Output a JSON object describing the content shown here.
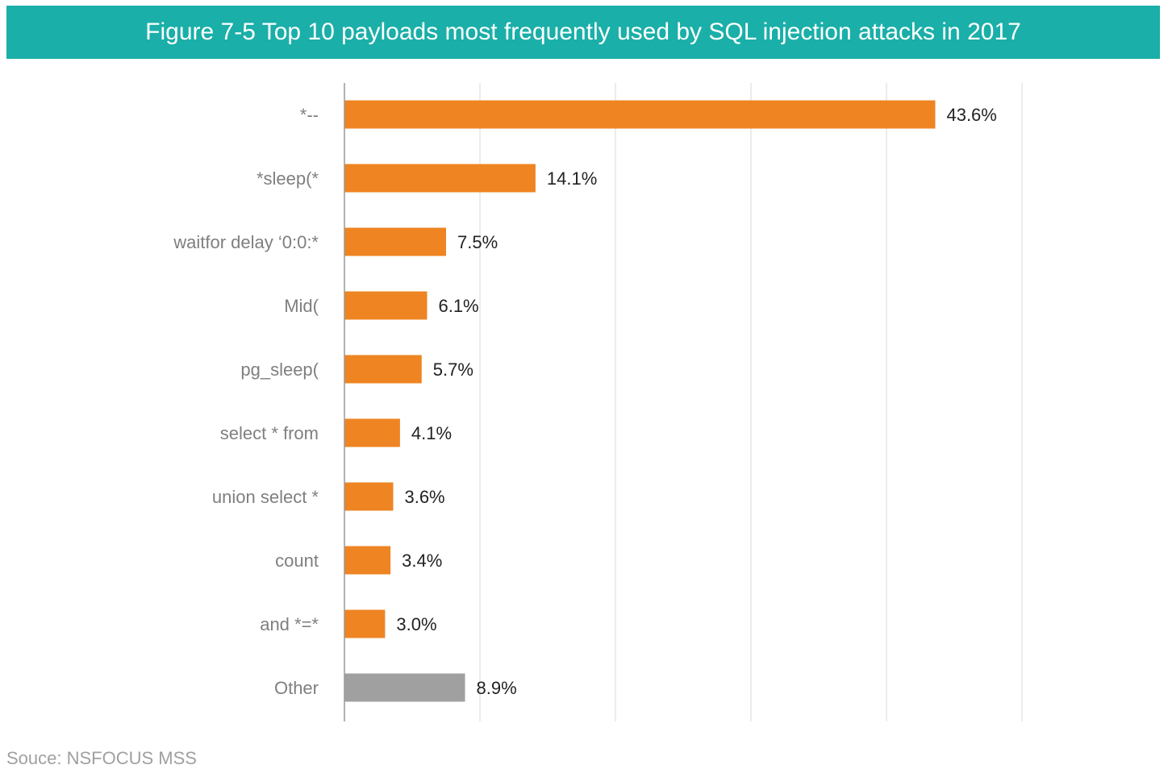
{
  "title": "Figure 7-5 Top 10 payloads most frequently used by SQL injection attacks in 2017",
  "source": "Souce: NSFOCUS MSS",
  "colors": {
    "title_bg": "#1aafa8",
    "bar": "#ee8422",
    "other_bar": "#a0a0a0"
  },
  "chart_data": {
    "type": "bar",
    "orientation": "horizontal",
    "categories": [
      "*--",
      "*sleep(*",
      "waitfor delay ‘0:0:*",
      "Mid(",
      "pg_sleep(",
      "select * from",
      "union  select *",
      "count",
      "and *=*",
      "Other"
    ],
    "values": [
      43.6,
      14.1,
      7.5,
      6.1,
      5.7,
      4.1,
      3.6,
      3.4,
      3.0,
      8.9
    ],
    "labels": [
      "43.6%",
      "14.1%",
      "7.5%",
      "6.1%",
      "5.7%",
      "4.1%",
      "3.6%",
      "3.4%",
      "3.0%",
      "8.9%"
    ],
    "unit": "%",
    "xlim": [
      0,
      50
    ],
    "grid": true,
    "tick_labels_shown": false
  }
}
